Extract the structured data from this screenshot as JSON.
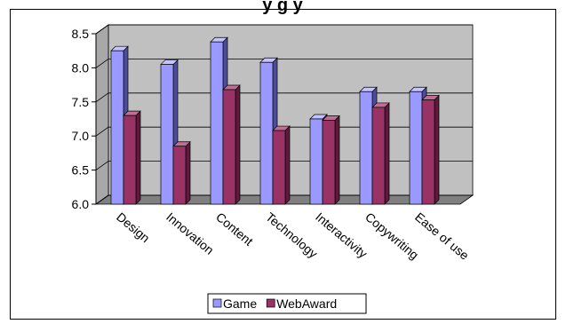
{
  "chart_data": {
    "type": "bar",
    "title": "Survey Results: Game vs. Category Average",
    "title_visible_fragment": "y                      g  y",
    "categories": [
      "Design",
      "Innovation",
      "Content",
      "Technology",
      "Interactivity",
      "Copywriting",
      "Ease of use"
    ],
    "series": [
      {
        "name": "Game",
        "values": [
          8.25,
          8.05,
          8.38,
          8.08,
          7.25,
          7.65,
          7.65
        ]
      },
      {
        "name": "WebAward",
        "values": [
          7.3,
          6.85,
          7.68,
          7.08,
          7.23,
          7.42,
          7.53
        ]
      }
    ],
    "ylim": [
      6.0,
      8.5
    ],
    "yticks": [
      6.0,
      6.5,
      7.0,
      7.5,
      8.0,
      8.5
    ],
    "ytick_labels": [
      "6.0",
      "6.5",
      "7.0",
      "7.5",
      "8.0",
      "8.5"
    ],
    "grid": true,
    "three_d": true,
    "legend_position": "bottom",
    "colors": {
      "Game_face": "#9999ff",
      "Game_side": "#4d4d9a",
      "Game_top": "#c4c4ff",
      "WebAward_face": "#993366",
      "WebAward_side": "#5a1c3b",
      "WebAward_top": "#c06e94",
      "wall": "#c0c0c0",
      "floor": "#808080",
      "border": "#000000"
    }
  }
}
